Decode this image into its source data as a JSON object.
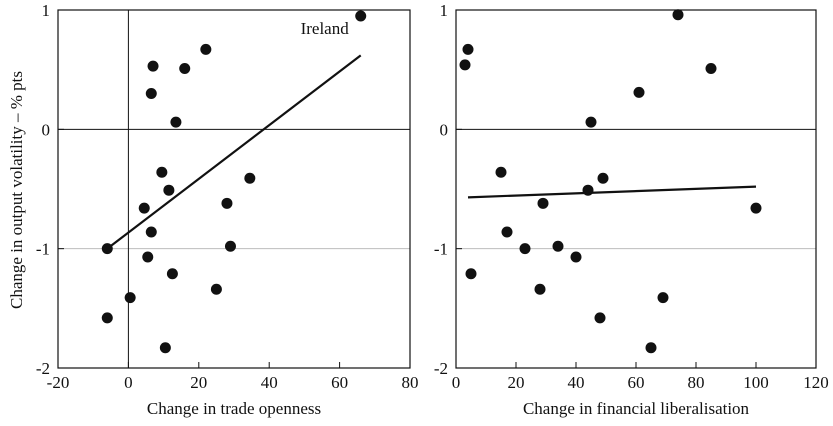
{
  "chart_data": [
    {
      "type": "scatter",
      "title": "",
      "xlabel": "Change in trade openness",
      "ylabel": "Change in output volatility – % pts",
      "xlim": [
        -20,
        80
      ],
      "ylim": [
        -2,
        1
      ],
      "xticks": [
        "-20",
        "0",
        "20",
        "40",
        "60",
        "80"
      ],
      "yticks": [
        "1",
        "0",
        "-1",
        "-2"
      ],
      "zero_lines": {
        "x": 0,
        "y": 0
      },
      "gridline_y": -1,
      "trendline": {
        "x": [
          -6,
          66
        ],
        "y": [
          -1.0,
          0.62
        ]
      },
      "annotations": [
        {
          "text": "Ireland",
          "x": 66,
          "y": 0.95
        }
      ],
      "points": [
        {
          "x": 66,
          "y": 0.95
        },
        {
          "x": 22,
          "y": 0.67
        },
        {
          "x": 7,
          "y": 0.53
        },
        {
          "x": 16,
          "y": 0.51
        },
        {
          "x": 6.5,
          "y": 0.3
        },
        {
          "x": 13.5,
          "y": 0.06
        },
        {
          "x": 9.5,
          "y": -0.36
        },
        {
          "x": 11.5,
          "y": -0.51
        },
        {
          "x": 34.5,
          "y": -0.41
        },
        {
          "x": 28,
          "y": -0.62
        },
        {
          "x": 4.5,
          "y": -0.66
        },
        {
          "x": 6.5,
          "y": -0.86
        },
        {
          "x": 29,
          "y": -0.98
        },
        {
          "x": -6,
          "y": -1.0
        },
        {
          "x": 5.5,
          "y": -1.07
        },
        {
          "x": 12.5,
          "y": -1.21
        },
        {
          "x": 25,
          "y": -1.34
        },
        {
          "x": 0.5,
          "y": -1.41
        },
        {
          "x": -6,
          "y": -1.58
        },
        {
          "x": 10.5,
          "y": -1.83
        }
      ]
    },
    {
      "type": "scatter",
      "title": "",
      "xlabel": "Change in financial liberalisation",
      "ylabel": "",
      "xlim": [
        0,
        120
      ],
      "ylim": [
        -2,
        1
      ],
      "xticks": [
        "0",
        "20",
        "40",
        "60",
        "80",
        "100",
        "120"
      ],
      "yticks": [
        "1",
        "0",
        "-1",
        "-2"
      ],
      "zero_lines": {
        "y": 0
      },
      "gridline_y": -1,
      "trendline": {
        "x": [
          4,
          100
        ],
        "y": [
          -0.57,
          -0.48
        ]
      },
      "annotations": [],
      "points": [
        {
          "x": 74,
          "y": 0.96
        },
        {
          "x": 4,
          "y": 0.67
        },
        {
          "x": 3,
          "y": 0.54
        },
        {
          "x": 85,
          "y": 0.51
        },
        {
          "x": 61,
          "y": 0.31
        },
        {
          "x": 45,
          "y": 0.06
        },
        {
          "x": 15,
          "y": -0.36
        },
        {
          "x": 49,
          "y": -0.41
        },
        {
          "x": 44,
          "y": -0.51
        },
        {
          "x": 29,
          "y": -0.62
        },
        {
          "x": 100,
          "y": -0.66
        },
        {
          "x": 17,
          "y": -0.86
        },
        {
          "x": 34,
          "y": -0.98
        },
        {
          "x": 23,
          "y": -1.0
        },
        {
          "x": 40,
          "y": -1.07
        },
        {
          "x": 5,
          "y": -1.21
        },
        {
          "x": 28,
          "y": -1.34
        },
        {
          "x": 69,
          "y": -1.41
        },
        {
          "x": 48,
          "y": -1.58
        },
        {
          "x": 65,
          "y": -1.83
        }
      ]
    }
  ]
}
